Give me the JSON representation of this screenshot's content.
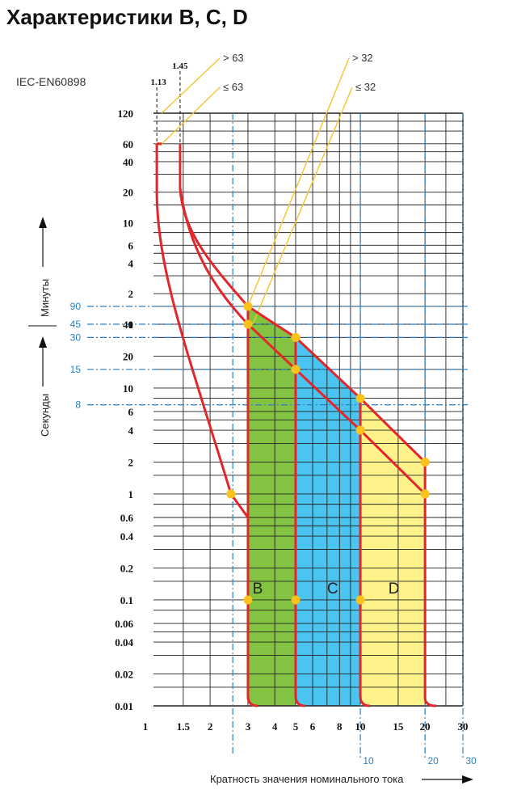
{
  "page": {
    "title": "Характеристики B, C, D",
    "standard": "IEC-EN60898"
  },
  "chart_data": {
    "type": "line",
    "title": "Характеристики B, C, D",
    "subtitle": "IEC-EN60898",
    "xlabel": "Кратность значения номинального тока",
    "x_scale": "log",
    "xlim": [
      1,
      30
    ],
    "x_ticks": [
      "1",
      "1.5",
      "2",
      "3",
      "4",
      "5",
      "6",
      "8",
      "10",
      "15",
      "20",
      "30"
    ],
    "x_blue_ticks": [
      "10",
      "20",
      "30"
    ],
    "y_scale": "log",
    "ylabel_minutes": "Минуты",
    "ylabel_seconds": "Секунды",
    "y_ticks_minutes": [
      "120",
      "60",
      "40",
      "20",
      "10",
      "6",
      "4",
      "2",
      "1"
    ],
    "y_ticks_seconds": [
      "40",
      "20",
      "10",
      "6",
      "4",
      "2",
      "1",
      "0.6",
      "0.4",
      "0.2",
      "0.1",
      "0.06",
      "0.04",
      "0.02",
      "0.01"
    ],
    "y_marker_seconds": [
      "90",
      "45",
      "30",
      "15",
      "8"
    ],
    "top_x_labels": [
      "1.13",
      "1.45"
    ],
    "curve_labels": [
      "> 63",
      "≤ 63",
      "> 32",
      "≤ 32"
    ],
    "regions": [
      {
        "name": "B",
        "x_from": 3,
        "x_to": 5,
        "color": "#84c341"
      },
      {
        "name": "C",
        "x_from": 5,
        "x_to": 10,
        "color": "#4bc4ef"
      },
      {
        "name": "D",
        "x_from": 10,
        "x_to": 20,
        "color": "#fef28a"
      }
    ],
    "colors": {
      "curve": "#e3262c",
      "marker": "#fcc21b",
      "blue": "#2a7fc0",
      "guide": "#f4c430"
    },
    "thermal_curves": [
      {
        "x": [
          1.13,
          1.13,
          1.16,
          1.32,
          1.62,
          2.0,
          2.5,
          3.0
        ],
        "y_seconds": [
          3600,
          1200,
          300,
          60,
          18,
          5,
          1,
          0.6
        ]
      },
      {
        "x": [
          1.45,
          1.45,
          1.7,
          3.0,
          5.0,
          10,
          20,
          20
        ],
        "y_seconds": [
          3600,
          1320,
          540,
          55,
          14,
          4,
          1.2,
          0.9
        ]
      },
      {
        "x": [
          1.45,
          1.7,
          3.0,
          5.0,
          10,
          20,
          20
        ],
        "y_seconds": [
          1320,
          420,
          40,
          10,
          2.3,
          0.5,
          0.35
        ]
      }
    ],
    "markers": [
      {
        "x": 3,
        "y_seconds": 90
      },
      {
        "x": 3,
        "y_seconds": 45
      },
      {
        "x": 5,
        "y_seconds": 30
      },
      {
        "x": 5,
        "y_seconds": 15
      },
      {
        "x": 10,
        "y_seconds": 8
      },
      {
        "x": 10,
        "y_seconds": 4
      },
      {
        "x": 20,
        "y_seconds": 2
      },
      {
        "x": 20,
        "y_seconds": 1
      },
      {
        "x": 2.5,
        "y_seconds": 1
      },
      {
        "x": 3,
        "y_seconds": 0.1
      },
      {
        "x": 5,
        "y_seconds": 0.1
      },
      {
        "x": 10,
        "y_seconds": 0.1
      }
    ]
  }
}
